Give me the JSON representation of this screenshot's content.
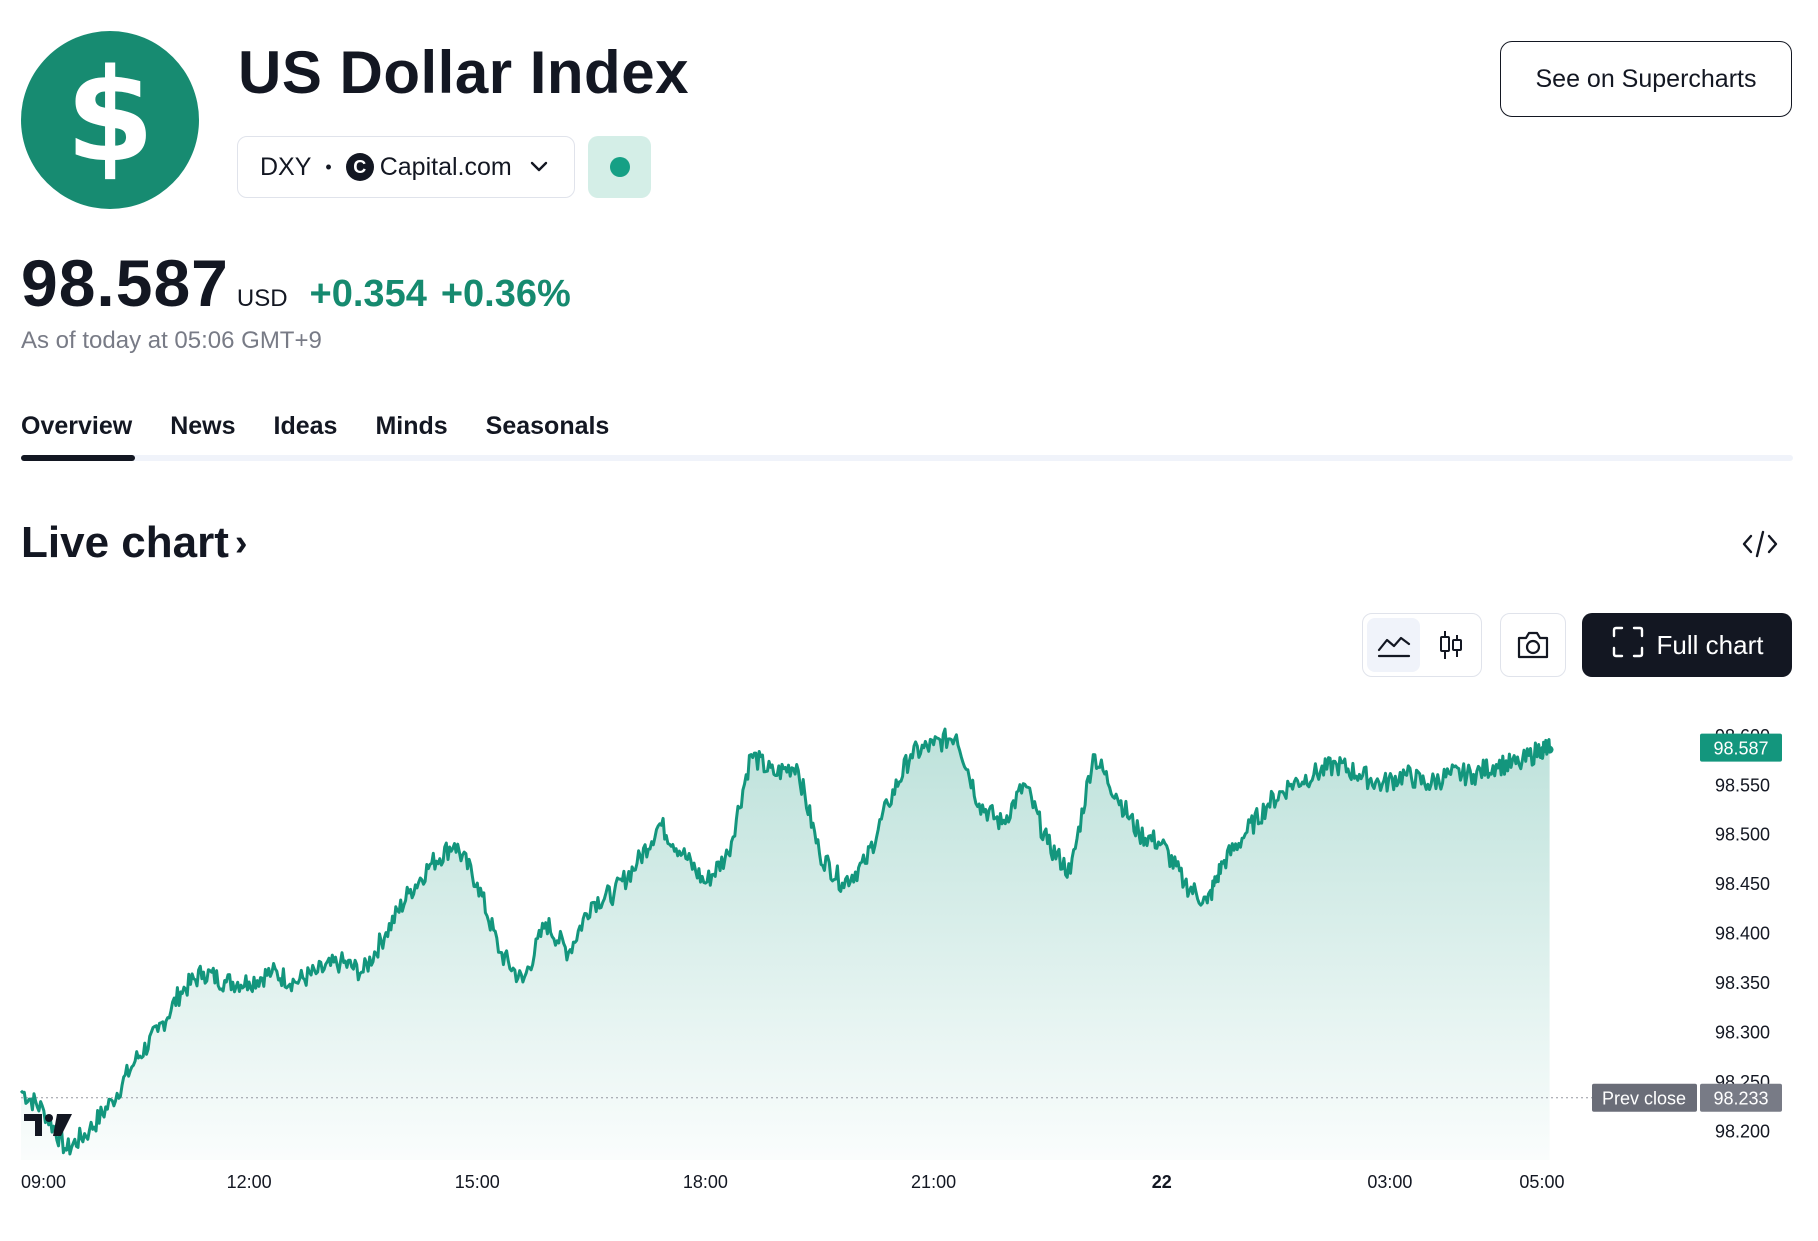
{
  "header": {
    "logo_symbol": "$",
    "title": "US Dollar Index",
    "ticker": "DXY",
    "separator": "•",
    "broker_icon_letter": "C",
    "broker": "Capital.com",
    "see_supercharts_label": "See on Supercharts"
  },
  "quote": {
    "price": "98.587",
    "currency": "USD",
    "change": "+0.354",
    "change_percent": "+0.36%",
    "as_of": "As of today at 05:06 GMT+9",
    "positive_color": "#168a6f"
  },
  "tabs": [
    {
      "label": "Overview",
      "active": true
    },
    {
      "label": "News",
      "active": false
    },
    {
      "label": "Ideas",
      "active": false
    },
    {
      "label": "Minds",
      "active": false
    },
    {
      "label": "Seasonals",
      "active": false
    }
  ],
  "live_chart": {
    "heading": "Live chart",
    "heading_arrow": "›",
    "embed_icon": "code-embed-icon",
    "toolbar": {
      "area_icon": "area-chart-icon",
      "candles_icon": "candlestick-icon",
      "camera_icon": "camera-icon",
      "full_chart_label": "Full chart",
      "full_chart_icon": "fullscreen-icon"
    }
  },
  "chart_data": {
    "type": "area",
    "xlabel": "",
    "ylabel": "",
    "x_tick_labels": [
      "09:00",
      "12:00",
      "15:00",
      "18:00",
      "21:00",
      "22",
      "03:00",
      "05:00"
    ],
    "y_tick_labels": [
      "98.600",
      "98.550",
      "98.500",
      "98.450",
      "98.400",
      "98.350",
      "98.300",
      "98.250",
      "98.200"
    ],
    "ylim": [
      98.17,
      98.615
    ],
    "last_price_label": "98.587",
    "prev_close_label": "Prev close",
    "prev_close_value": "98.233",
    "line_color": "#13967d",
    "grid": false,
    "series": [
      {
        "x_hours": [
          0.0,
          0.3,
          0.6,
          0.9,
          1.2,
          1.5,
          1.8,
          2.1,
          2.4,
          2.7,
          3.0,
          3.3,
          3.6,
          3.9,
          4.2,
          4.5,
          4.8,
          5.1,
          5.4,
          5.7,
          6.0,
          6.3,
          6.6,
          6.9,
          7.2,
          7.5,
          7.8,
          8.1,
          8.4,
          8.7,
          9.0,
          9.3,
          9.6,
          9.9,
          10.2,
          10.5,
          10.8,
          11.1,
          11.4,
          11.7,
          12.0,
          12.3,
          12.6,
          12.9,
          13.2,
          13.5,
          13.8,
          14.1,
          14.4,
          14.7,
          15.0,
          15.3,
          15.6,
          15.8,
          16.1,
          16.4,
          16.7,
          17.0,
          17.3,
          17.6,
          17.9,
          18.2,
          18.5,
          18.8,
          19.1,
          19.4,
          19.7,
          20.0,
          20.1
        ],
        "values": [
          98.24,
          98.22,
          98.18,
          98.2,
          98.23,
          98.27,
          98.3,
          98.34,
          98.36,
          98.35,
          98.35,
          98.36,
          98.35,
          98.36,
          98.37,
          98.36,
          98.4,
          98.44,
          98.47,
          98.49,
          98.45,
          98.38,
          98.35,
          98.41,
          98.38,
          98.43,
          98.44,
          98.47,
          98.51,
          98.48,
          98.45,
          98.48,
          98.58,
          98.56,
          98.57,
          98.48,
          98.45,
          98.47,
          98.53,
          98.58,
          98.59,
          98.6,
          98.53,
          98.51,
          98.55,
          98.49,
          98.46,
          98.58,
          98.54,
          98.5,
          98.49,
          98.45,
          98.43,
          98.47,
          98.5,
          98.53,
          98.55,
          98.56,
          98.57,
          98.56,
          98.55,
          98.56,
          98.55,
          98.56,
          98.56,
          98.57,
          98.57,
          98.587,
          98.585
        ]
      }
    ]
  }
}
